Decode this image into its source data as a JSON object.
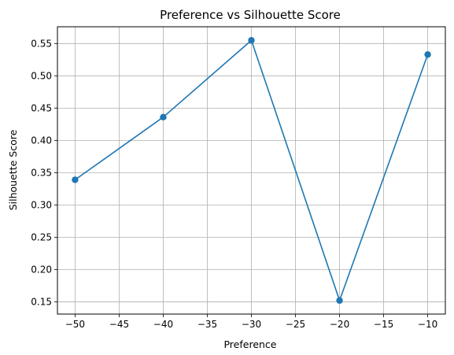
{
  "chart_data": {
    "type": "line",
    "title": "Preference vs Silhouette Score",
    "xlabel": "Preference",
    "ylabel": "Silhouette Score",
    "x": [
      -50,
      -40,
      -30,
      -20,
      -10
    ],
    "series": [
      {
        "values": [
          0.339,
          0.436,
          0.555,
          0.152,
          0.533
        ],
        "color": "#1f77b4",
        "marker": "circle"
      }
    ],
    "xlim": [
      -52,
      -8
    ],
    "ylim": [
      0.131,
      0.576
    ],
    "xticks": [
      -50,
      -45,
      -40,
      -35,
      -30,
      -25,
      -20,
      -15,
      -10
    ],
    "xtick_labels": [
      "−50",
      "−45",
      "−40",
      "−35",
      "−30",
      "−25",
      "−20",
      "−15",
      "−10"
    ],
    "yticks": [
      0.15,
      0.2,
      0.25,
      0.3,
      0.35,
      0.4,
      0.45,
      0.5,
      0.55
    ],
    "ytick_labels": [
      "0.15",
      "0.20",
      "0.25",
      "0.30",
      "0.35",
      "0.40",
      "0.45",
      "0.50",
      "0.55"
    ],
    "grid": true
  }
}
